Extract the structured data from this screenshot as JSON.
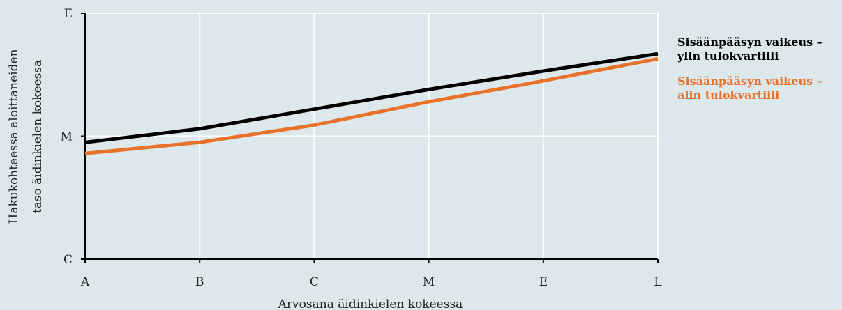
{
  "chart_data": {
    "type": "line",
    "title": "",
    "xlabel": "Arvosana äidinkielen kokeessa",
    "ylabel_lines": [
      "Hakukohteessa aloittaneiden",
      "taso äidinkielen kokeessa"
    ],
    "categories": [
      "A",
      "B",
      "C",
      "M",
      "E",
      "L"
    ],
    "y_ticks": [
      {
        "label": "C",
        "value": 0
      },
      {
        "label": "M",
        "value": 1
      },
      {
        "label": "E",
        "value": 2
      }
    ],
    "ylim": [
      0,
      2
    ],
    "grid": true,
    "legend_position": "right",
    "series": [
      {
        "name_lines": [
          "Sisäänpääsyn vaikeus –",
          "ylin tulokvartiili"
        ],
        "color": "#000000",
        "values": [
          0.95,
          1.06,
          1.22,
          1.38,
          1.53,
          1.67
        ]
      },
      {
        "name_lines": [
          "Sisäänpääsyn vaikeus –",
          "alin tulokvartiili"
        ],
        "color": "#e8722a",
        "values": [
          0.86,
          0.95,
          1.09,
          1.28,
          1.45,
          1.63
        ]
      }
    ]
  },
  "colors": {
    "background": "#dce8ec",
    "grid": "#ffffff",
    "axis": "#000000"
  }
}
